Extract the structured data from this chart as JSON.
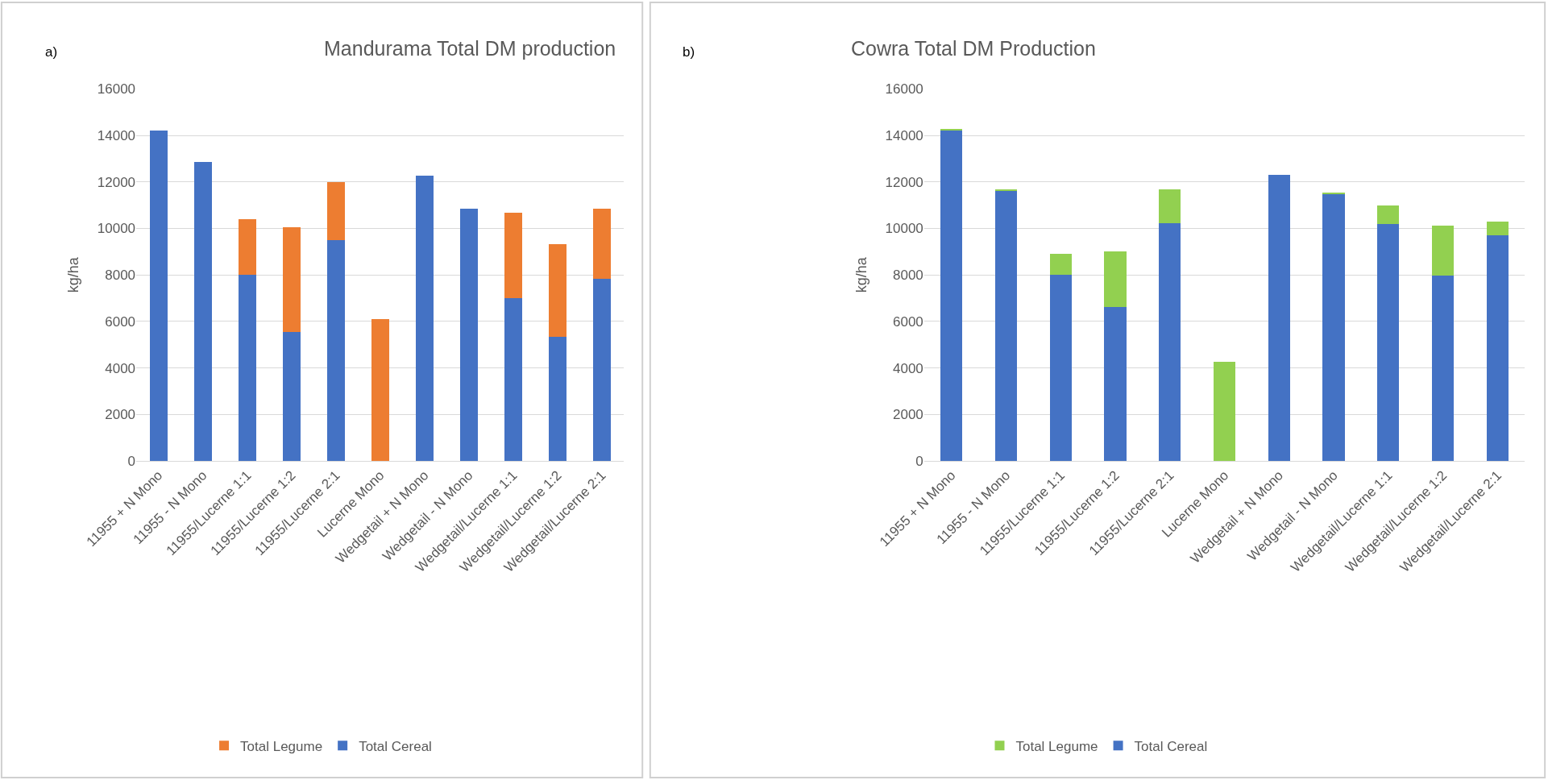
{
  "chart_data": [
    {
      "type": "bar",
      "stacked": true,
      "title": "Mandurama Total DM production",
      "ylabel": "kg/ha",
      "annotations": [
        "a)"
      ],
      "categories": [
        "11955 + N Mono",
        "11955 - N Mono",
        "11955/Lucerne 1:1",
        "11955/Lucerne 1:2",
        "11955/Lucerne 2:1",
        "Lucerne Mono",
        "Wedgetail + N Mono",
        "Wedgetail - N Mono",
        "Wedgetail/Lucerne 1:1",
        "Wedgetail/Lucerne 1:2",
        "Wedgetail/Lucerne 2:1"
      ],
      "series": [
        {
          "name": "Total Cereal",
          "color": "#4472c4",
          "values": [
            14200,
            12870,
            8000,
            5550,
            9500,
            0,
            12280,
            10850,
            7000,
            5350,
            7850
          ]
        },
        {
          "name": "Total Legume",
          "color": "#ed7d31",
          "values": [
            0,
            0,
            2400,
            4500,
            2480,
            6100,
            0,
            0,
            3680,
            3970,
            3000
          ]
        }
      ],
      "ylim": [
        0,
        16000
      ],
      "yticks": [
        0,
        2000,
        4000,
        6000,
        8000,
        10000,
        12000,
        14000,
        16000
      ],
      "grid": "y",
      "legend": "bottom"
    },
    {
      "type": "bar",
      "stacked": true,
      "title": "Cowra Total DM Production",
      "ylabel": "kg/ha",
      "annotations": [
        "b)"
      ],
      "categories": [
        "11955 + N Mono",
        "11955 - N Mono",
        "11955/Lucerne 1:1",
        "11955/Lucerne 1:2",
        "11955/Lucerne 2:1",
        "Lucerne Mono",
        "Wedgetail + N Mono",
        "Wedgetail - N Mono",
        "Wedgetail/Lucerne 1:1",
        "Wedgetail/Lucerne 1:2",
        "Wedgetail/Lucerne 2:1"
      ],
      "series": [
        {
          "name": "Total Cereal",
          "color": "#4472c4",
          "values": [
            14230,
            11600,
            8000,
            6620,
            10220,
            0,
            12300,
            11480,
            10180,
            7980,
            9700
          ]
        },
        {
          "name": "Total Legume",
          "color": "#92d050",
          "values": [
            50,
            80,
            920,
            2400,
            1460,
            4250,
            0,
            50,
            820,
            2150,
            580
          ]
        }
      ],
      "ylim": [
        0,
        16000
      ],
      "yticks": [
        0,
        2000,
        4000,
        6000,
        8000,
        10000,
        12000,
        14000,
        16000
      ],
      "grid": "y",
      "legend": "bottom"
    }
  ]
}
